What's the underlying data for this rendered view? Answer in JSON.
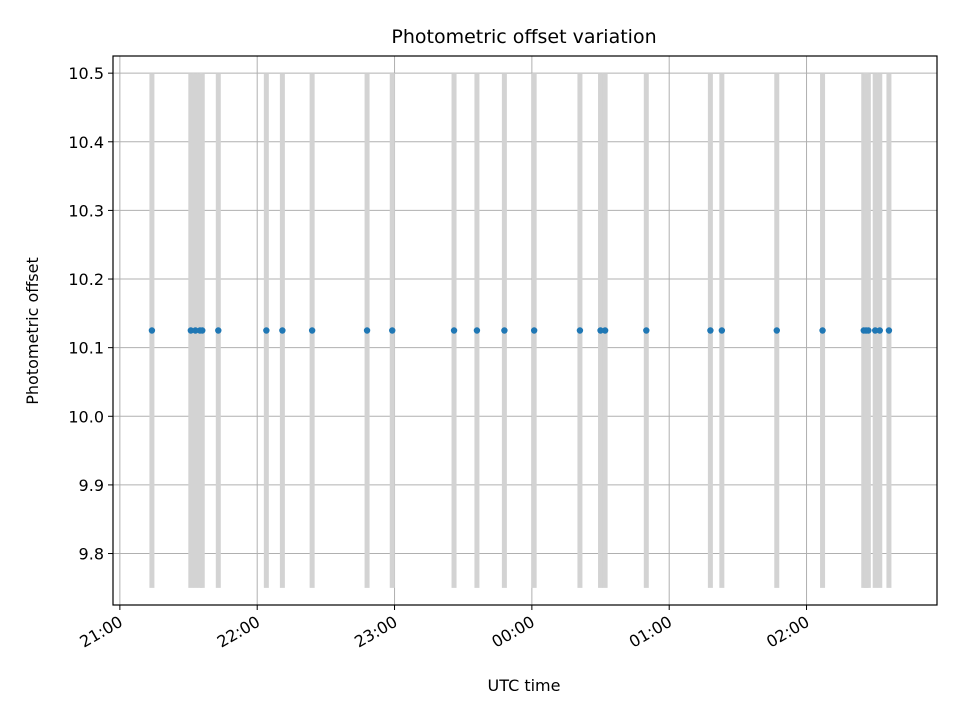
{
  "chart_data": {
    "type": "scatter",
    "title": "Photometric offset variation",
    "xlabel": "UTC time",
    "ylabel": "Photometric offset",
    "xlim": [
      "20:57",
      "02:57"
    ],
    "ylim": [
      9.725,
      10.525
    ],
    "grid": true,
    "colors": {
      "points": "#1f77b4",
      "bars": "#d3d3d3",
      "grid": "#b0b0b0"
    },
    "x_ticks": [
      {
        "t": "21:00",
        "label": "21:00"
      },
      {
        "t": "22:00",
        "label": "22:00"
      },
      {
        "t": "23:00",
        "label": "23:00"
      },
      {
        "t": "00:00",
        "label": "00:00"
      },
      {
        "t": "01:00",
        "label": "01:00"
      },
      {
        "t": "02:00",
        "label": "02:00"
      }
    ],
    "y_ticks": [
      {
        "v": 9.8,
        "label": "9.8"
      },
      {
        "v": 9.9,
        "label": "9.9"
      },
      {
        "v": 10.0,
        "label": "10.0"
      },
      {
        "v": 10.1,
        "label": "10.1"
      },
      {
        "v": 10.2,
        "label": "10.2"
      },
      {
        "v": 10.3,
        "label": "10.3"
      },
      {
        "v": 10.4,
        "label": "10.4"
      },
      {
        "v": 10.5,
        "label": "10.5"
      }
    ],
    "vertical_bands": {
      "ymin": 9.75,
      "ymax": 10.5,
      "times": [
        "21:14",
        "21:31",
        "21:33",
        "21:35",
        "21:36",
        "21:43",
        "22:04",
        "22:11",
        "22:24",
        "22:48",
        "22:59",
        "23:26",
        "23:36",
        "23:48",
        "00:01",
        "00:21",
        "00:30",
        "00:32",
        "00:50",
        "01:18",
        "01:23",
        "01:47",
        "02:07",
        "02:25",
        "02:26",
        "02:27",
        "02:30",
        "02:32",
        "02:36"
      ]
    },
    "series": [
      {
        "x": [
          "21:14",
          "21:31",
          "21:33",
          "21:35",
          "21:36",
          "21:43",
          "22:04",
          "22:11",
          "22:24",
          "22:48",
          "22:59",
          "23:26",
          "23:36",
          "23:48",
          "00:01",
          "00:21",
          "00:30",
          "00:32",
          "00:50",
          "01:18",
          "01:23",
          "01:47",
          "02:07",
          "02:25",
          "02:26",
          "02:27",
          "02:30",
          "02:32",
          "02:36"
        ],
        "y": [
          10.125,
          10.125,
          10.125,
          10.125,
          10.125,
          10.125,
          10.125,
          10.125,
          10.125,
          10.125,
          10.125,
          10.125,
          10.125,
          10.125,
          10.125,
          10.125,
          10.125,
          10.125,
          10.125,
          10.125,
          10.125,
          10.125,
          10.125,
          10.125,
          10.125,
          10.125,
          10.125,
          10.125,
          10.125
        ]
      }
    ]
  }
}
